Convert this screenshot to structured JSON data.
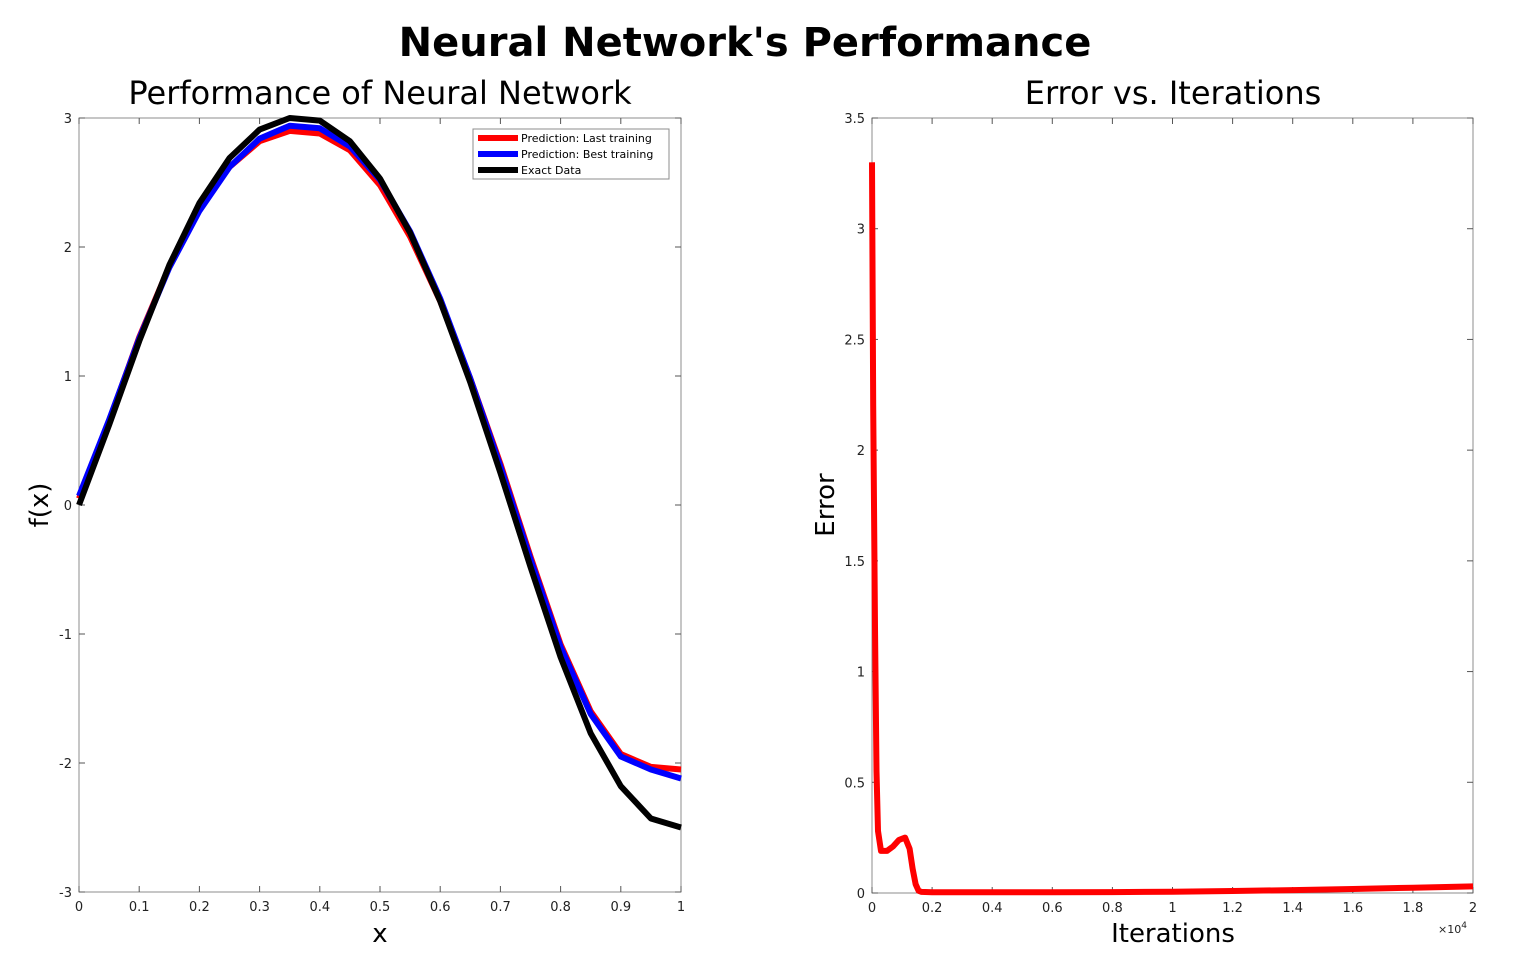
{
  "figure_title": "Neural Network's Performance",
  "chart_data": [
    {
      "type": "line",
      "title": "Performance of Neural Network",
      "xlabel": "x",
      "ylabel": "f(x)",
      "xlim": [
        0,
        1
      ],
      "ylim": [
        -3,
        3
      ],
      "xticks": [
        "0",
        "0.1",
        "0.2",
        "0.3",
        "0.4",
        "0.5",
        "0.6",
        "0.7",
        "0.8",
        "0.9",
        "1"
      ],
      "yticks": [
        "-3",
        "-2",
        "-1",
        "0",
        "1",
        "2",
        "3"
      ],
      "grid": false,
      "legend_position": "top-right",
      "x": [
        0,
        0.05,
        0.1,
        0.15,
        0.2,
        0.25,
        0.3,
        0.35,
        0.4,
        0.45,
        0.5,
        0.55,
        0.6,
        0.65,
        0.7,
        0.75,
        0.8,
        0.85,
        0.9,
        0.95,
        1
      ],
      "series": [
        {
          "name": "Prediction: Last training",
          "color": "#ff0000",
          "values": [
            0.05,
            0.65,
            1.3,
            1.85,
            2.3,
            2.62,
            2.82,
            2.9,
            2.88,
            2.75,
            2.48,
            2.08,
            1.58,
            0.98,
            0.32,
            -0.4,
            -1.08,
            -1.6,
            -1.93,
            -2.03,
            -2.05
          ]
        },
        {
          "name": "Prediction: Best training",
          "color": "#0000ff",
          "values": [
            0.07,
            0.66,
            1.29,
            1.84,
            2.28,
            2.62,
            2.84,
            2.94,
            2.92,
            2.78,
            2.52,
            2.12,
            1.6,
            0.98,
            0.3,
            -0.42,
            -1.1,
            -1.62,
            -1.95,
            -2.05,
            -2.12
          ]
        },
        {
          "name": "Exact Data",
          "color": "#000000",
          "values": [
            0.0,
            0.62,
            1.27,
            1.86,
            2.34,
            2.69,
            2.91,
            3.0,
            2.98,
            2.82,
            2.53,
            2.11,
            1.58,
            0.95,
            0.25,
            -0.48,
            -1.18,
            -1.77,
            -2.18,
            -2.43,
            -2.5
          ]
        }
      ]
    },
    {
      "type": "line",
      "title": "Error vs. Iterations",
      "xlabel": "Iterations",
      "ylabel": "Error",
      "x_exponent": "×10",
      "x_exponent_power": "4",
      "xlim": [
        0,
        20000
      ],
      "ylim": [
        0,
        3.5
      ],
      "xticks": [
        "0",
        "0.2",
        "0.4",
        "0.6",
        "0.8",
        "1",
        "1.2",
        "1.4",
        "1.6",
        "1.8",
        "2"
      ],
      "yticks": [
        "0",
        "0.5",
        "1",
        "1.5",
        "2",
        "2.5",
        "3",
        "3.5"
      ],
      "grid": false,
      "series": [
        {
          "color": "#ff0000",
          "x": [
            0,
            40,
            100,
            150,
            200,
            300,
            500,
            700,
            900,
            1100,
            1250,
            1350,
            1450,
            1550,
            1650,
            2000,
            4000,
            6000,
            8000,
            10000,
            12000,
            14000,
            16000,
            18000,
            20000
          ],
          "values": [
            3.3,
            2.2,
            1.2,
            0.55,
            0.28,
            0.19,
            0.19,
            0.21,
            0.24,
            0.25,
            0.2,
            0.11,
            0.04,
            0.01,
            0.005,
            0.003,
            0.003,
            0.003,
            0.004,
            0.006,
            0.009,
            0.013,
            0.018,
            0.024,
            0.03
          ]
        }
      ]
    }
  ]
}
